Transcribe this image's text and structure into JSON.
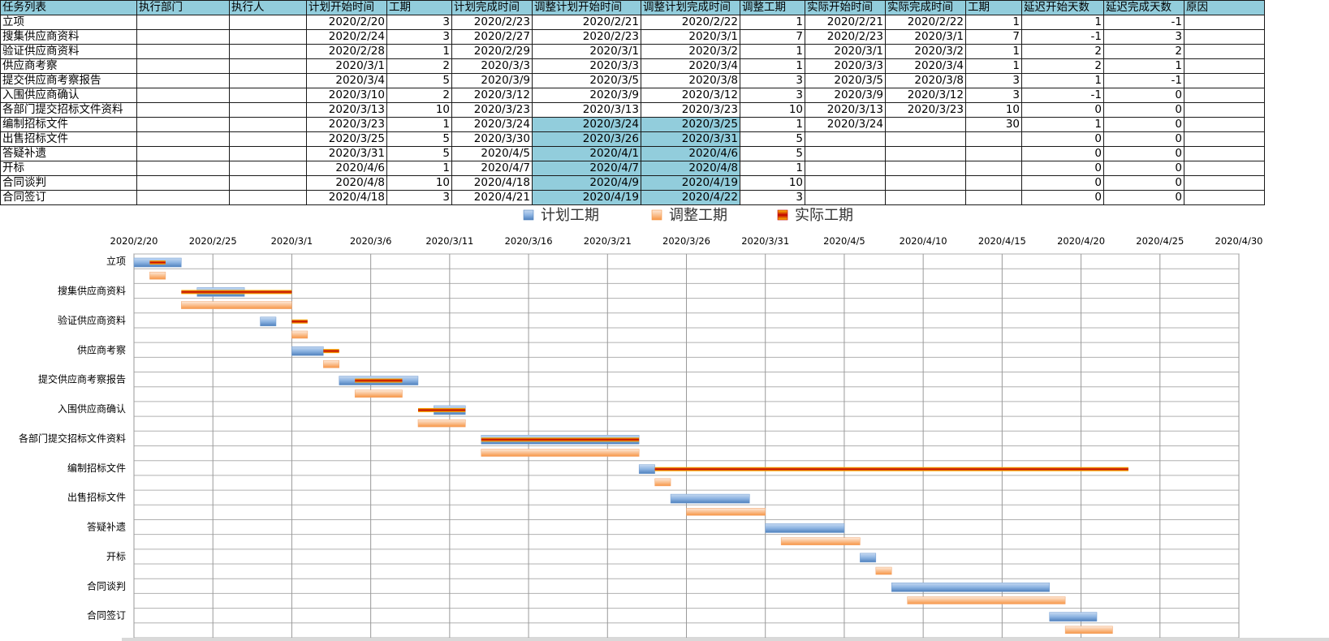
{
  "table": {
    "headers": [
      "任务列表",
      "执行部门",
      "执行人",
      "计划开始时间",
      "工期",
      "计划完成时间",
      "调整计划开始时间",
      "调整计划完成时间",
      "调整工期",
      "实际开始时间",
      "实际完成时间",
      "工期",
      "延迟开始天数",
      "延迟完成天数",
      "原因"
    ],
    "rows": [
      [
        "立项",
        "",
        "",
        "2020/2/20",
        "3",
        "2020/2/23",
        "2020/2/21",
        "2020/2/22",
        "1",
        "2020/2/21",
        "2020/2/22",
        "1",
        "1",
        "-1",
        ""
      ],
      [
        "搜集供应商资料",
        "",
        "",
        "2020/2/24",
        "3",
        "2020/2/27",
        "2020/2/23",
        "2020/3/1",
        "7",
        "2020/2/23",
        "2020/3/1",
        "7",
        "-1",
        "3",
        ""
      ],
      [
        "验证供应商资料",
        "",
        "",
        "2020/2/28",
        "1",
        "2020/2/29",
        "2020/3/1",
        "2020/3/2",
        "1",
        "2020/3/1",
        "2020/3/2",
        "1",
        "2",
        "2",
        ""
      ],
      [
        "供应商考察",
        "",
        "",
        "2020/3/1",
        "2",
        "2020/3/3",
        "2020/3/3",
        "2020/3/4",
        "1",
        "2020/3/3",
        "2020/3/4",
        "1",
        "2",
        "1",
        ""
      ],
      [
        "提交供应商考察报告",
        "",
        "",
        "2020/3/4",
        "5",
        "2020/3/9",
        "2020/3/5",
        "2020/3/8",
        "3",
        "2020/3/5",
        "2020/3/8",
        "3",
        "1",
        "-1",
        ""
      ],
      [
        "入围供应商确认",
        "",
        "",
        "2020/3/10",
        "2",
        "2020/3/12",
        "2020/3/9",
        "2020/3/12",
        "3",
        "2020/3/9",
        "2020/3/12",
        "3",
        "-1",
        "0",
        ""
      ],
      [
        "各部门提交招标文件资料",
        "",
        "",
        "2020/3/13",
        "10",
        "2020/3/23",
        "2020/3/13",
        "2020/3/23",
        "10",
        "2020/3/13",
        "2020/3/23",
        "10",
        "0",
        "0",
        ""
      ],
      [
        "编制招标文件",
        "",
        "",
        "2020/3/23",
        "1",
        "2020/3/24",
        "2020/3/24",
        "2020/3/25",
        "1",
        "2020/3/24",
        "",
        "30",
        "1",
        "0",
        ""
      ],
      [
        "出售招标文件",
        "",
        "",
        "2020/3/25",
        "5",
        "2020/3/30",
        "2020/3/26",
        "2020/3/31",
        "5",
        "",
        "",
        "",
        "0",
        "0",
        ""
      ],
      [
        "答疑补遗",
        "",
        "",
        "2020/3/31",
        "5",
        "2020/4/5",
        "2020/4/1",
        "2020/4/6",
        "5",
        "",
        "",
        "",
        "0",
        "0",
        ""
      ],
      [
        "开标",
        "",
        "",
        "2020/4/6",
        "1",
        "2020/4/7",
        "2020/4/7",
        "2020/4/8",
        "1",
        "",
        "",
        "",
        "0",
        "0",
        ""
      ],
      [
        "合同谈判",
        "",
        "",
        "2020/4/8",
        "10",
        "2020/4/18",
        "2020/4/9",
        "2020/4/19",
        "10",
        "",
        "",
        "",
        "0",
        "0",
        ""
      ],
      [
        "合同签订",
        "",
        "",
        "2020/4/18",
        "3",
        "2020/4/21",
        "2020/4/19",
        "2020/4/22",
        "3",
        "",
        "",
        "",
        "0",
        "0",
        ""
      ]
    ]
  },
  "chart_data": {
    "type": "bar",
    "orientation": "horizontal-gantt",
    "legend": [
      {
        "name": "计划工期",
        "color": "#8db4e2"
      },
      {
        "name": "调整工期",
        "color": "#fac090"
      },
      {
        "name": "实际工期",
        "color": "#e46c0a"
      }
    ],
    "legend_position": "top",
    "x_ticks": [
      "2020/2/20",
      "2020/2/25",
      "2020/3/1",
      "2020/3/6",
      "2020/3/11",
      "2020/3/16",
      "2020/3/21",
      "2020/3/26",
      "2020/3/31",
      "2020/4/5",
      "2020/4/10",
      "2020/4/15",
      "2020/4/20",
      "2020/4/25",
      "2020/4/30"
    ],
    "xlim": [
      "2020/2/20",
      "2020/4/30"
    ],
    "grid": true,
    "categories": [
      "立项",
      "搜集供应商资料",
      "验证供应商资料",
      "供应商考察",
      "提交供应商考察报告",
      "入围供应商确认",
      "各部门提交招标文件资料",
      "编制招标文件",
      "出售招标文件",
      "答疑补遗",
      "开标",
      "合同谈判",
      "合同签订"
    ],
    "plan": [
      [
        "2020/2/20",
        "2020/2/23"
      ],
      [
        "2020/2/24",
        "2020/2/27"
      ],
      [
        "2020/2/28",
        "2020/2/29"
      ],
      [
        "2020/3/1",
        "2020/3/3"
      ],
      [
        "2020/3/4",
        "2020/3/9"
      ],
      [
        "2020/3/10",
        "2020/3/12"
      ],
      [
        "2020/3/13",
        "2020/3/23"
      ],
      [
        "2020/3/23",
        "2020/3/24"
      ],
      [
        "2020/3/25",
        "2020/3/30"
      ],
      [
        "2020/3/31",
        "2020/4/5"
      ],
      [
        "2020/4/6",
        "2020/4/7"
      ],
      [
        "2020/4/8",
        "2020/4/18"
      ],
      [
        "2020/4/18",
        "2020/4/21"
      ]
    ],
    "adjusted": [
      [
        "2020/2/21",
        "2020/2/22"
      ],
      [
        "2020/2/23",
        "2020/3/1"
      ],
      [
        "2020/3/1",
        "2020/3/2"
      ],
      [
        "2020/3/3",
        "2020/3/4"
      ],
      [
        "2020/3/5",
        "2020/3/8"
      ],
      [
        "2020/3/9",
        "2020/3/12"
      ],
      [
        "2020/3/13",
        "2020/3/23"
      ],
      [
        "2020/3/24",
        "2020/3/25"
      ],
      [
        "2020/3/26",
        "2020/3/31"
      ],
      [
        "2020/4/1",
        "2020/4/6"
      ],
      [
        "2020/4/7",
        "2020/4/8"
      ],
      [
        "2020/4/9",
        "2020/4/19"
      ],
      [
        "2020/4/19",
        "2020/4/22"
      ]
    ],
    "actual": [
      [
        "2020/2/21",
        "2020/2/22"
      ],
      [
        "2020/2/23",
        "2020/3/1"
      ],
      [
        "2020/3/1",
        "2020/3/2"
      ],
      [
        "2020/3/3",
        "2020/3/4"
      ],
      [
        "2020/3/5",
        "2020/3/8"
      ],
      [
        "2020/3/9",
        "2020/3/12"
      ],
      [
        "2020/3/13",
        "2020/3/23"
      ],
      [
        "2020/3/24",
        "2020/4/23"
      ],
      null,
      null,
      null,
      null,
      null
    ]
  }
}
